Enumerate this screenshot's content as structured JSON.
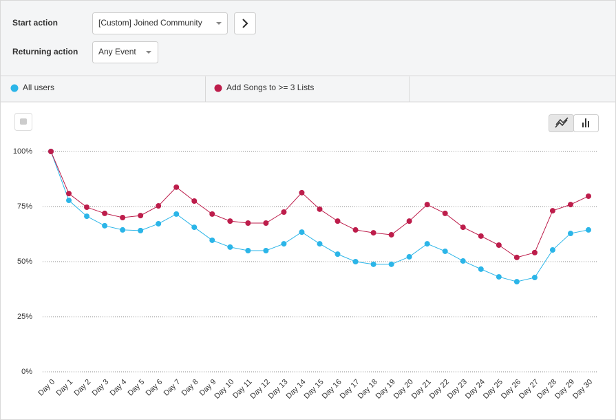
{
  "controls": {
    "start_action": {
      "label": "Start action",
      "value": "[Custom] Joined Community"
    },
    "returning_action": {
      "label": "Returning action",
      "value": "Any Event"
    }
  },
  "chart_data": {
    "type": "line",
    "categories": [
      "Day 0",
      "Day 1",
      "Day 2",
      "Day 3",
      "Day 4",
      "Day 5",
      "Day 6",
      "Day 7",
      "Day 8",
      "Day 9",
      "Day 10",
      "Day 11",
      "Day 12",
      "Day 13",
      "Day 14",
      "Day 15",
      "Day 16",
      "Day 17",
      "Day 18",
      "Day 19",
      "Day 20",
      "Day 21",
      "Day 22",
      "Day 23",
      "Day 24",
      "Day 25",
      "Day 26",
      "Day 27",
      "Day 28",
      "Day 29",
      "Day 30"
    ],
    "series": [
      {
        "name": "All users",
        "color": "#2bb5e8",
        "values": [
          100,
          77.8,
          70.6,
          66.3,
          64.4,
          64.1,
          67.2,
          71.6,
          65.6,
          59.7,
          56.6,
          55,
          55,
          58.1,
          63.4,
          58.1,
          53.4,
          50,
          48.8,
          48.8,
          52.2,
          58.1,
          54.7,
          50.3,
          46.6,
          43.1,
          40.9,
          42.8,
          55.3,
          62.8,
          64.4
        ]
      },
      {
        "name": "Add Songs to >= 3 Lists",
        "color": "#bd1d4b",
        "values": [
          100,
          80.9,
          74.7,
          71.9,
          70,
          70.9,
          75.3,
          83.8,
          77.5,
          71.6,
          68.4,
          67.5,
          67.5,
          72.5,
          81.3,
          73.8,
          68.4,
          64.4,
          63.1,
          62.2,
          68.4,
          75.9,
          71.9,
          65.6,
          61.6,
          57.5,
          51.9,
          54.1,
          73.1,
          75.9,
          79.7
        ]
      }
    ],
    "ylim": [
      0,
      100
    ],
    "yticks": [
      {
        "value": 0,
        "label": "0%"
      },
      {
        "value": 25,
        "label": "25%"
      },
      {
        "value": 50,
        "label": "50%"
      },
      {
        "value": 75,
        "label": "75%"
      },
      {
        "value": 100,
        "label": "100%"
      }
    ],
    "grid": true
  }
}
